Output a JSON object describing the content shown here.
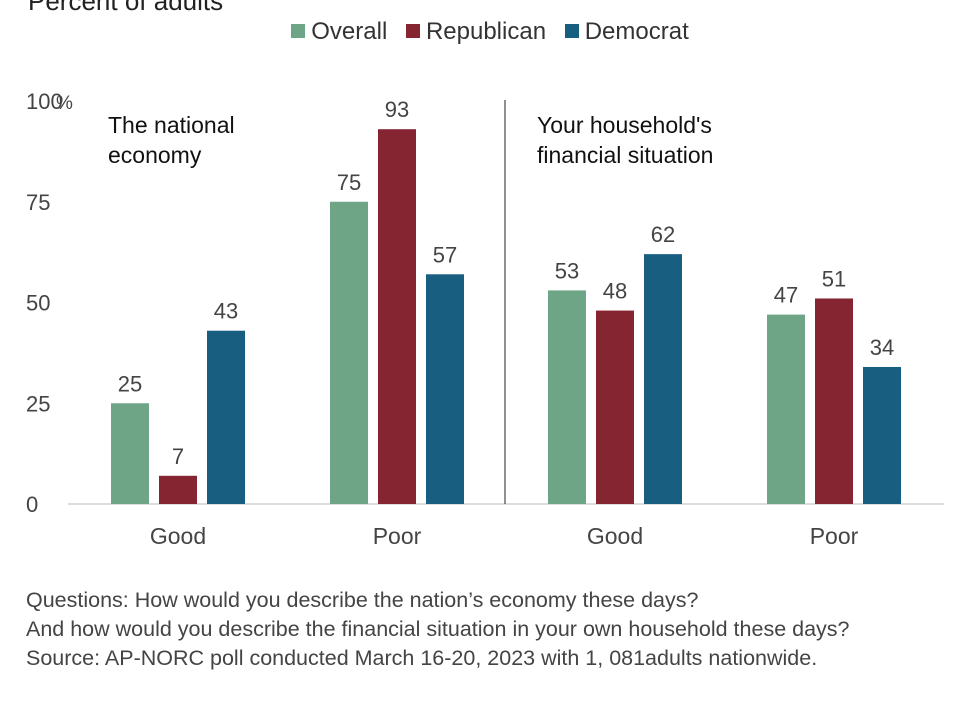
{
  "header": {
    "subtitle": "Percent of adults"
  },
  "colors": {
    "Overall": "#6fa587",
    "Republican": "#862532",
    "Democrat": "#175e80"
  },
  "chart_data": {
    "type": "bar",
    "unit": "%",
    "ylim": [
      0,
      100
    ],
    "yticks": [
      0,
      25,
      50,
      75,
      100
    ],
    "grid": false,
    "legend_position": "top",
    "panels": [
      {
        "label": "The national\neconomy",
        "categories": [
          "Good",
          "Poor"
        ],
        "series": [
          {
            "name": "Overall",
            "values": [
              25,
              75
            ]
          },
          {
            "name": "Republican",
            "values": [
              7,
              93
            ]
          },
          {
            "name": "Democrat",
            "values": [
              43,
              57
            ]
          }
        ]
      },
      {
        "label": "Your household's\nfinancial situation",
        "categories": [
          "Good",
          "Poor"
        ],
        "series": [
          {
            "name": "Overall",
            "values": [
              53,
              47
            ]
          },
          {
            "name": "Republican",
            "values": [
              48,
              51
            ]
          },
          {
            "name": "Democrat",
            "values": [
              62,
              34
            ]
          }
        ]
      }
    ]
  },
  "footnote": {
    "line1": "Questions: How would you describe the nation’s economy these days?",
    "line2": "And how would you describe the financial situation in your own household these days?",
    "line3": "Source: AP-NORC poll conducted March 16-20, 2023 with 1, 081adults nationwide."
  }
}
